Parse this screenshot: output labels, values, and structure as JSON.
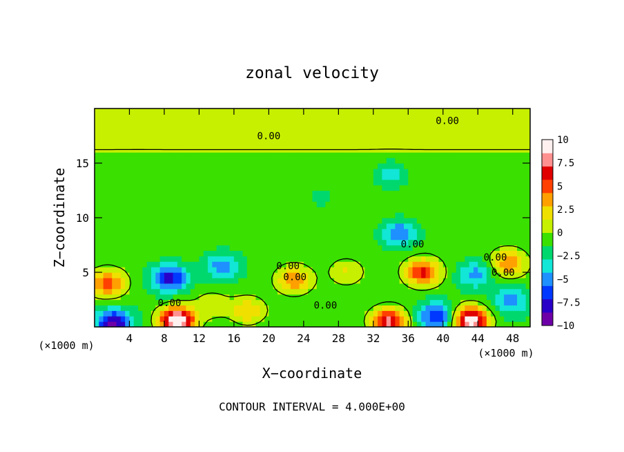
{
  "chart_data": {
    "type": "heatmap",
    "title": "zonal velocity",
    "xlabel": "X−coordinate",
    "ylabel": "Z−coordinate",
    "x_unit_left": "(×1000 m)",
    "x_unit_right": "(×1000 m)",
    "footer": "CONTOUR INTERVAL = 4.000E+00",
    "xlim": [
      0,
      50
    ],
    "ylim": [
      0,
      20
    ],
    "x_ticks": [
      4,
      8,
      12,
      16,
      20,
      24,
      28,
      32,
      36,
      40,
      44,
      48
    ],
    "x_tick_labels": [
      "4",
      "8",
      "12",
      "16",
      "20",
      "24",
      "28",
      "32",
      "36",
      "40",
      "44",
      "48"
    ],
    "y_ticks": [
      5,
      10,
      15
    ],
    "y_tick_labels": [
      "5",
      "10",
      "15"
    ],
    "colorbar": {
      "range": [
        -10,
        10
      ],
      "tick_values": [
        10,
        7.5,
        5,
        2.5,
        0,
        -2.5,
        -5,
        -7.5,
        -10
      ],
      "tick_labels": [
        "10",
        "7.5",
        "5",
        "2.5",
        "0",
        "−2.5",
        "−5",
        "−7.5",
        "−10"
      ],
      "colors": [
        "#6e00a8",
        "#2a00c8",
        "#0038ff",
        "#1e90ff",
        "#12e6d6",
        "#00d86e",
        "#3ae000",
        "#c6f000",
        "#f0e000",
        "#ffa000",
        "#ff4000",
        "#e00000",
        "#ff9090",
        "#fff0f0"
      ]
    },
    "contour_label": "0.00",
    "contour_labels_shown": 9,
    "features": [
      {
        "x": 9.5,
        "z": 0.6,
        "value": 12
      },
      {
        "x": 8.6,
        "z": 4.5,
        "value": -7
      },
      {
        "x": 1.5,
        "z": 4.0,
        "value": 6
      },
      {
        "x": 2.2,
        "z": 0.4,
        "value": -8
      },
      {
        "x": 17.6,
        "z": 1.5,
        "value": 4
      },
      {
        "x": 14.7,
        "z": 5.6,
        "value": -4.5
      },
      {
        "x": 33.8,
        "z": 0.5,
        "value": 9
      },
      {
        "x": 37.7,
        "z": 5.0,
        "value": 7
      },
      {
        "x": 35.0,
        "z": 8.6,
        "value": -5
      },
      {
        "x": 43.2,
        "z": 0.6,
        "value": 11
      },
      {
        "x": 39.2,
        "z": 1.0,
        "value": -6
      },
      {
        "x": 43.7,
        "z": 4.8,
        "value": -4
      },
      {
        "x": 47.5,
        "z": 5.8,
        "value": 5
      },
      {
        "x": 47.8,
        "z": 2.4,
        "value": -4
      },
      {
        "x": 22.9,
        "z": 4.3,
        "value": 5
      },
      {
        "x": 28.9,
        "z": 5.0,
        "value": 2.5
      },
      {
        "x": 13.5,
        "z": 2.0,
        "value": 2.5
      },
      {
        "x": 34.0,
        "z": 14.0,
        "value": -3
      },
      {
        "x": 26.0,
        "z": 12.0,
        "value": -1.2
      },
      {
        "x": 5.0,
        "z": 14.0,
        "value": -0.5
      }
    ]
  }
}
